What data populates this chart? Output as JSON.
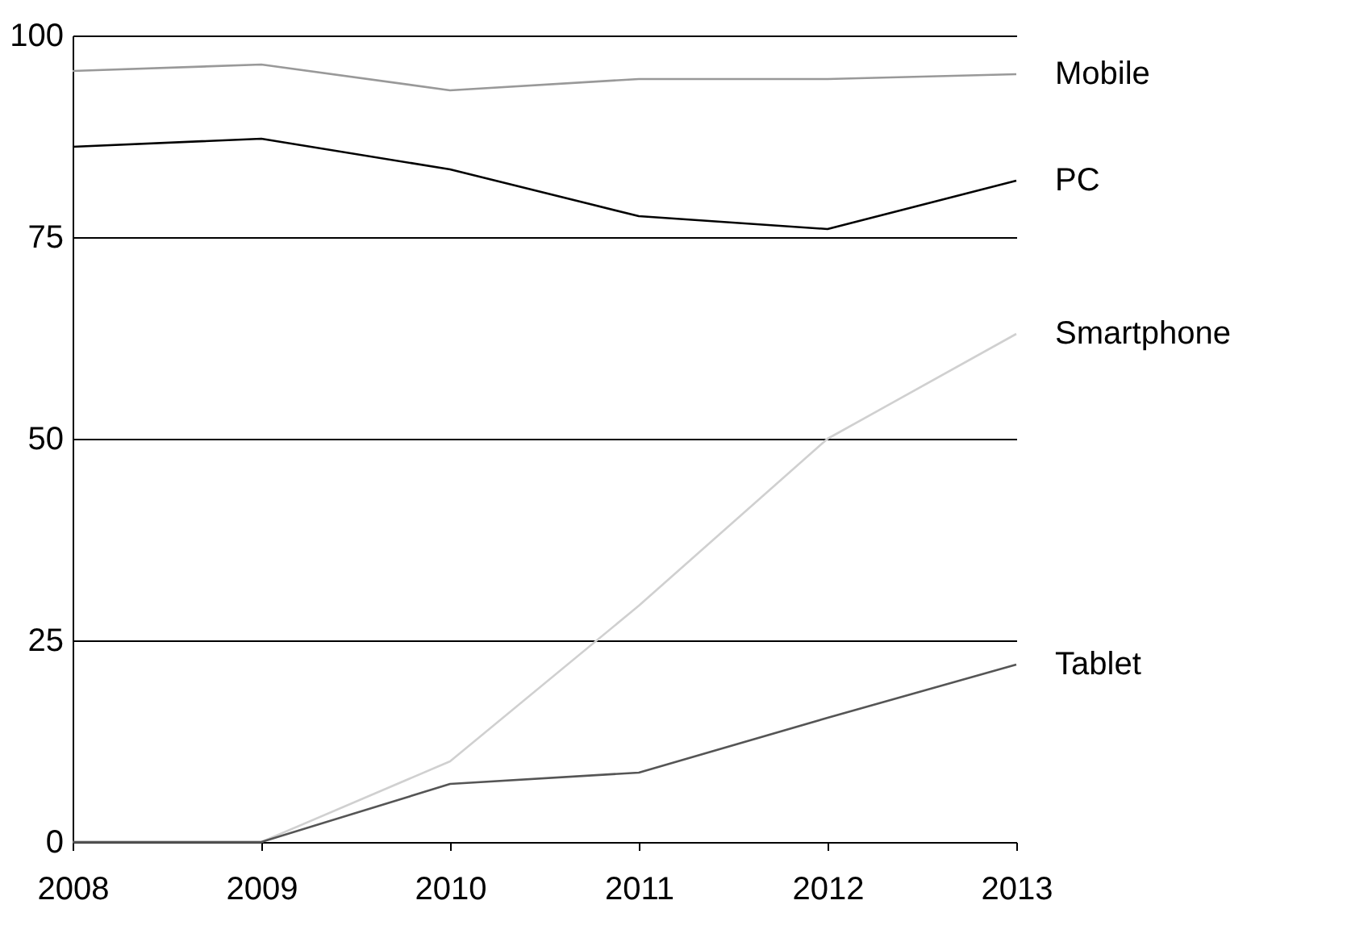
{
  "chart_data": {
    "type": "line",
    "x": [
      2008,
      2009,
      2010,
      2011,
      2012,
      2013
    ],
    "series": [
      {
        "name": "Mobile",
        "color": "#999999",
        "values": [
          95.6,
          96.4,
          93.2,
          94.6,
          94.6,
          95.2
        ]
      },
      {
        "name": "PC",
        "color": "#000000",
        "values": [
          86.2,
          87.2,
          83.4,
          77.6,
          76.0,
          82.0
        ]
      },
      {
        "name": "Smartphone",
        "color": "#d0d0d0",
        "values": [
          0,
          0,
          10,
          29.3,
          50,
          63
        ]
      },
      {
        "name": "Tablet",
        "color": "#555555",
        "values": [
          0,
          0,
          7.2,
          8.6,
          15.4,
          22
        ]
      }
    ],
    "xlim": [
      2008,
      2013
    ],
    "xticks": [
      2008,
      2009,
      2010,
      2011,
      2012,
      2013
    ],
    "ylim": [
      0,
      100
    ],
    "yticks": [
      0,
      25,
      50,
      75,
      100
    ],
    "grid": "y",
    "marker": "none",
    "line_style": "solid"
  }
}
